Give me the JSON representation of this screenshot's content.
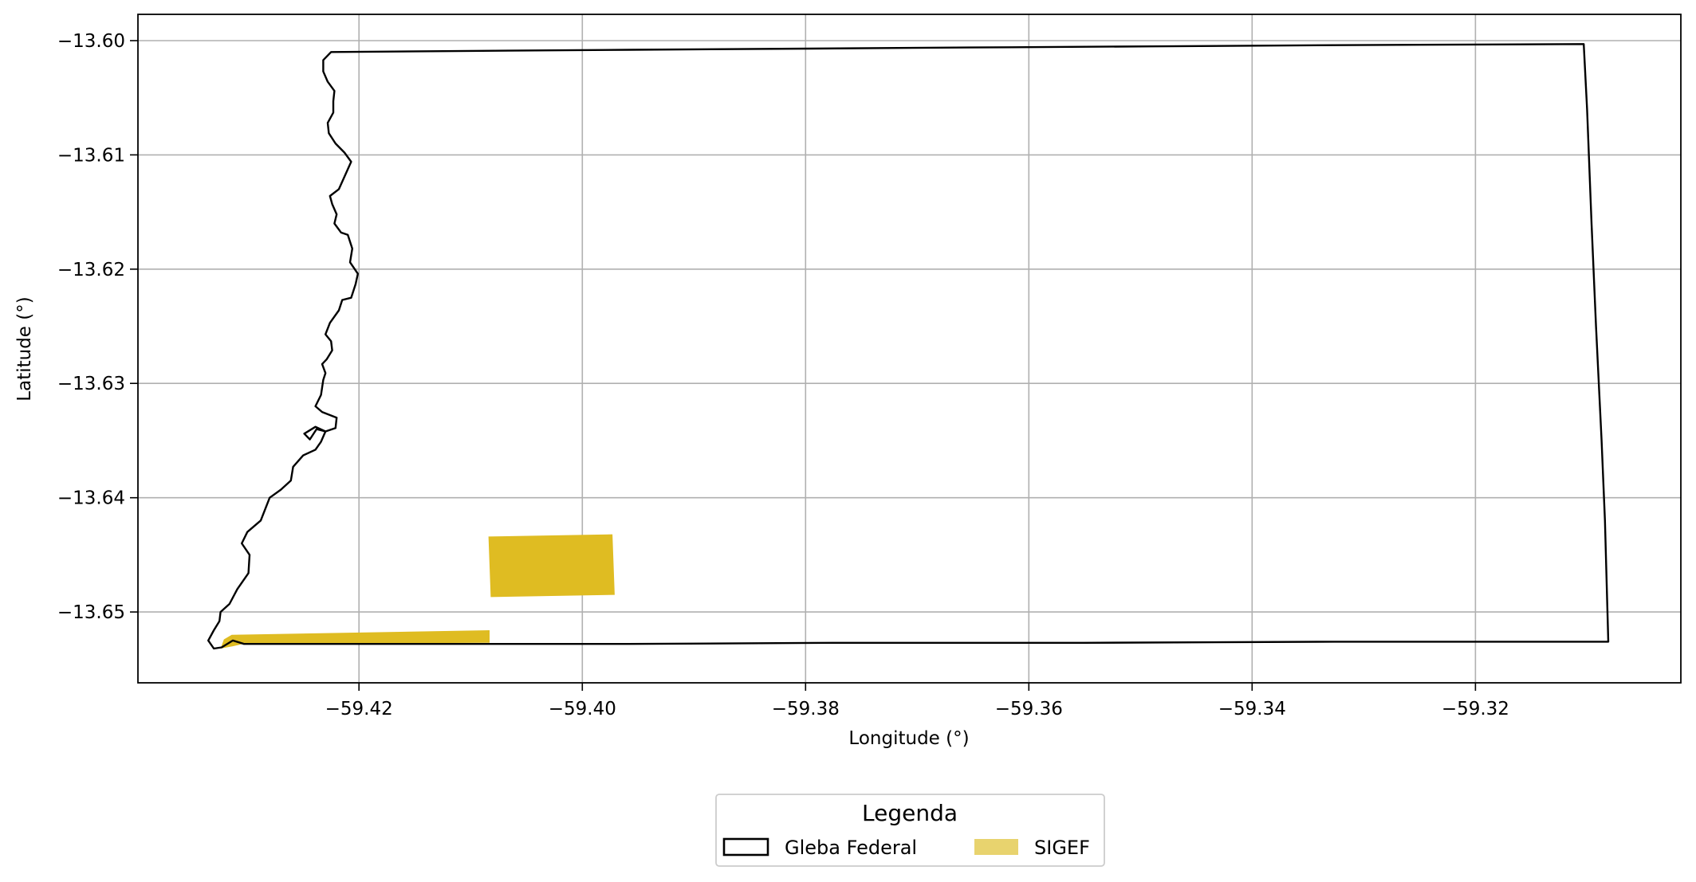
{
  "chart_data": {
    "type": "map",
    "title": "",
    "xlabel": "Longitude (°)",
    "ylabel": "Latitude (°)",
    "xlim": [
      -59.4398,
      -59.3016
    ],
    "ylim": [
      -13.6562,
      -13.5977
    ],
    "grid": true,
    "x_ticks": [
      -59.42,
      -59.4,
      -59.38,
      -59.36,
      -59.34,
      -59.32
    ],
    "x_tick_labels": [
      "−59.42",
      "−59.40",
      "−59.38",
      "−59.36",
      "−59.34",
      "−59.32"
    ],
    "y_ticks": [
      -13.6,
      -13.61,
      -13.62,
      -13.63,
      -13.64,
      -13.65
    ],
    "y_tick_labels": [
      "−13.60",
      "−13.61",
      "−13.62",
      "−13.63",
      "−13.64",
      "−13.65"
    ],
    "legend": {
      "title": "Legenda",
      "placement": "bottom-center",
      "entries": [
        {
          "label": "Gleba Federal",
          "style": "outline",
          "color": "#000000"
        },
        {
          "label": "SIGEF",
          "style": "fill",
          "color": "#e8d36e"
        }
      ]
    },
    "layers": [
      {
        "name": "Gleba Federal",
        "kind": "outline",
        "stroke": "#000000",
        "coordinates": [
          [
            -59.4225,
            -13.601
          ],
          [
            -59.4101,
            -13.6009
          ],
          [
            -59.3959,
            -13.6008
          ],
          [
            -59.3796,
            -13.6007
          ],
          [
            -59.3653,
            -13.6006
          ],
          [
            -59.349,
            -13.6005
          ],
          [
            -59.3327,
            -13.6004
          ],
          [
            -59.3103,
            -13.6003
          ],
          [
            -59.31,
            -13.606
          ],
          [
            -59.3096,
            -13.616
          ],
          [
            -59.3092,
            -13.625
          ],
          [
            -59.3087,
            -13.635
          ],
          [
            -59.3084,
            -13.642
          ],
          [
            -59.3081,
            -13.6526
          ],
          [
            -59.3327,
            -13.6526
          ],
          [
            -59.3551,
            -13.6527
          ],
          [
            -59.3776,
            -13.6527
          ],
          [
            -59.3959,
            -13.6528
          ],
          [
            -59.4083,
            -13.6528
          ],
          [
            -59.4303,
            -13.6528
          ],
          [
            -59.4313,
            -13.6525
          ],
          [
            -59.4323,
            -13.6531
          ],
          [
            -59.433,
            -13.6532
          ],
          [
            -59.4335,
            -13.6525
          ],
          [
            -59.433,
            -13.6516
          ],
          [
            -59.4325,
            -13.6508
          ],
          [
            -59.4324,
            -13.65
          ],
          [
            -59.4316,
            -13.6493
          ],
          [
            -59.4309,
            -13.648
          ],
          [
            -59.4299,
            -13.6466
          ],
          [
            -59.4298,
            -13.645
          ],
          [
            -59.4305,
            -13.644
          ],
          [
            -59.43,
            -13.643
          ],
          [
            -59.4288,
            -13.642
          ],
          [
            -59.428,
            -13.64
          ],
          [
            -59.427,
            -13.6393
          ],
          [
            -59.4261,
            -13.6385
          ],
          [
            -59.4259,
            -13.6373
          ],
          [
            -59.425,
            -13.6363
          ],
          [
            -59.4239,
            -13.6358
          ],
          [
            -59.4234,
            -13.6351
          ],
          [
            -59.423,
            -13.6342
          ],
          [
            -59.4239,
            -13.6338
          ],
          [
            -59.4249,
            -13.6344
          ],
          [
            -59.4244,
            -13.6349
          ],
          [
            -59.4238,
            -13.634
          ],
          [
            -59.423,
            -13.6342
          ],
          [
            -59.4221,
            -13.6339
          ],
          [
            -59.422,
            -13.633
          ],
          [
            -59.4233,
            -13.6325
          ],
          [
            -59.4239,
            -13.632
          ],
          [
            -59.4234,
            -13.631
          ],
          [
            -59.4232,
            -13.6297
          ],
          [
            -59.423,
            -13.6291
          ],
          [
            -59.4233,
            -13.6283
          ],
          [
            -59.4229,
            -13.6279
          ],
          [
            -59.4224,
            -13.6271
          ],
          [
            -59.4225,
            -13.6263
          ],
          [
            -59.423,
            -13.6257
          ],
          [
            -59.4226,
            -13.6247
          ],
          [
            -59.4218,
            -13.6236
          ],
          [
            -59.4215,
            -13.6227
          ],
          [
            -59.4207,
            -13.6225
          ],
          [
            -59.4203,
            -13.6213
          ],
          [
            -59.4201,
            -13.6204
          ],
          [
            -59.4208,
            -13.6194
          ],
          [
            -59.4206,
            -13.6182
          ],
          [
            -59.421,
            -13.617
          ],
          [
            -59.4216,
            -13.6168
          ],
          [
            -59.4222,
            -13.616
          ],
          [
            -59.422,
            -13.6152
          ],
          [
            -59.4224,
            -13.6143
          ],
          [
            -59.4226,
            -13.6136
          ],
          [
            -59.4218,
            -13.613
          ],
          [
            -59.4213,
            -13.6119
          ],
          [
            -59.4207,
            -13.6106
          ],
          [
            -59.4213,
            -13.6098
          ],
          [
            -59.4221,
            -13.609
          ],
          [
            -59.4227,
            -13.6081
          ],
          [
            -59.4228,
            -13.6072
          ],
          [
            -59.4223,
            -13.6063
          ],
          [
            -59.4223,
            -13.6053
          ],
          [
            -59.4222,
            -13.6044
          ],
          [
            -59.4228,
            -13.6036
          ],
          [
            -59.4232,
            -13.6027
          ],
          [
            -59.4232,
            -13.6017
          ],
          [
            -59.4225,
            -13.601
          ]
        ]
      },
      {
        "name": "SIGEF",
        "kind": "fill",
        "fill": "#dfbc22",
        "parts": [
          [
            [
              -59.4084,
              -13.6434
            ],
            [
              -59.3973,
              -13.6432
            ],
            [
              -59.3971,
              -13.6485
            ],
            [
              -59.4082,
              -13.6487
            ]
          ],
          [
            [
              -59.4314,
              -13.652
            ],
            [
              -59.4083,
              -13.6516
            ],
            [
              -59.4083,
              -13.6527
            ],
            [
              -59.4304,
              -13.6528
            ],
            [
              -59.4313,
              -13.653
            ],
            [
              -59.4324,
              -13.6532
            ],
            [
              -59.4321,
              -13.6524
            ]
          ]
        ]
      }
    ]
  }
}
